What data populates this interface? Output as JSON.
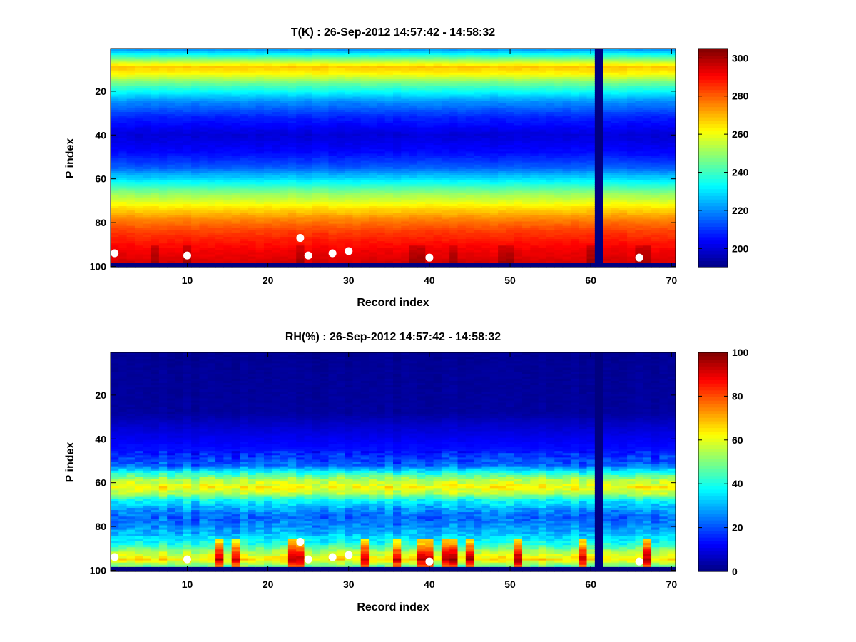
{
  "chart_data": [
    {
      "type": "heatmap",
      "title": "T(K) : 26-Sep-2012 14:57:42 - 14:58:32",
      "xlabel": "Record index",
      "ylabel": "P index",
      "xlim": [
        0.5,
        70.5
      ],
      "ylim": [
        0.5,
        100.5
      ],
      "y_reversed": true,
      "x_ticks": [
        10,
        20,
        30,
        40,
        50,
        60,
        70
      ],
      "y_ticks": [
        20,
        40,
        60,
        80,
        100
      ],
      "colormap": "jet",
      "color_range": [
        190,
        305
      ],
      "colorbar_ticks": [
        200,
        220,
        240,
        260,
        280,
        300
      ],
      "profile_by_p_index": [
        {
          "p": 1,
          "value": 222
        },
        {
          "p": 5,
          "value": 245
        },
        {
          "p": 9,
          "value": 268
        },
        {
          "p": 12,
          "value": 262
        },
        {
          "p": 18,
          "value": 240
        },
        {
          "p": 25,
          "value": 220
        },
        {
          "p": 32,
          "value": 208
        },
        {
          "p": 40,
          "value": 200
        },
        {
          "p": 48,
          "value": 205
        },
        {
          "p": 55,
          "value": 215
        },
        {
          "p": 62,
          "value": 235
        },
        {
          "p": 67,
          "value": 250
        },
        {
          "p": 72,
          "value": 262
        },
        {
          "p": 78,
          "value": 275
        },
        {
          "p": 85,
          "value": 285
        },
        {
          "p": 93,
          "value": 292
        },
        {
          "p": 98,
          "value": 295
        }
      ],
      "missing_record": 61,
      "missing_rows": [
        99,
        100
      ],
      "markers": [
        {
          "x": 1,
          "y": 94
        },
        {
          "x": 10,
          "y": 95
        },
        {
          "x": 24,
          "y": 87
        },
        {
          "x": 25,
          "y": 95
        },
        {
          "x": 28,
          "y": 94
        },
        {
          "x": 30,
          "y": 93
        },
        {
          "x": 40,
          "y": 96
        },
        {
          "x": 66,
          "y": 96
        }
      ]
    },
    {
      "type": "heatmap",
      "title": "RH(%) : 26-Sep-2012 14:57:42 - 14:58:32",
      "xlabel": "Record index",
      "ylabel": "P index",
      "xlim": [
        0.5,
        70.5
      ],
      "ylim": [
        0.5,
        100.5
      ],
      "y_reversed": true,
      "x_ticks": [
        10,
        20,
        30,
        40,
        50,
        60,
        70
      ],
      "y_ticks": [
        20,
        40,
        60,
        80,
        100
      ],
      "colormap": "jet",
      "color_range": [
        0,
        100
      ],
      "colorbar_ticks": [
        0,
        20,
        40,
        60,
        80,
        100
      ],
      "profile_by_p_index": [
        {
          "p": 1,
          "value": 2
        },
        {
          "p": 28,
          "value": 3
        },
        {
          "p": 35,
          "value": 8
        },
        {
          "p": 45,
          "value": 14
        },
        {
          "p": 52,
          "value": 22
        },
        {
          "p": 56,
          "value": 42
        },
        {
          "p": 59,
          "value": 55
        },
        {
          "p": 62,
          "value": 62
        },
        {
          "p": 65,
          "value": 55
        },
        {
          "p": 68,
          "value": 38
        },
        {
          "p": 72,
          "value": 28
        },
        {
          "p": 76,
          "value": 22
        },
        {
          "p": 80,
          "value": 26
        },
        {
          "p": 84,
          "value": 32
        },
        {
          "p": 88,
          "value": 40
        },
        {
          "p": 92,
          "value": 55
        },
        {
          "p": 95,
          "value": 65
        },
        {
          "p": 98,
          "value": 48
        }
      ],
      "missing_record": 61,
      "missing_rows": [
        99,
        100
      ],
      "markers": [
        {
          "x": 1,
          "y": 94
        },
        {
          "x": 10,
          "y": 95
        },
        {
          "x": 24,
          "y": 87
        },
        {
          "x": 25,
          "y": 95
        },
        {
          "x": 28,
          "y": 94
        },
        {
          "x": 30,
          "y": 93
        },
        {
          "x": 40,
          "y": 96
        },
        {
          "x": 66,
          "y": 96
        }
      ]
    }
  ]
}
